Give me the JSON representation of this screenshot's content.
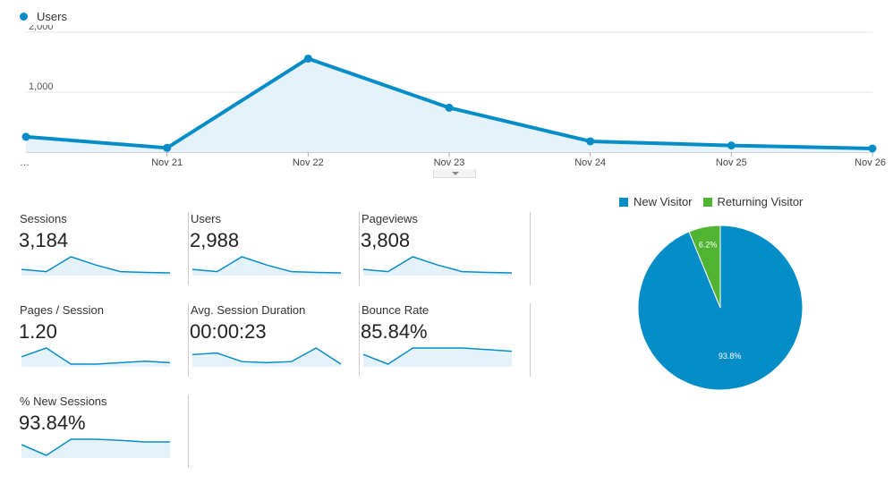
{
  "chart_data": [
    {
      "type": "area",
      "x": [
        "…",
        "Nov 21",
        "Nov 22",
        "Nov 23",
        "Nov 24",
        "Nov 25",
        "Nov 26"
      ],
      "series": [
        {
          "name": "Users",
          "values": [
            255,
            70,
            1560,
            740,
            180,
            110,
            60
          ]
        }
      ],
      "yticks": [
        "1,000",
        "2,000"
      ],
      "ylim": [
        0,
        2000
      ],
      "grid": true,
      "legend": "top-left",
      "color": "#058dc7"
    },
    {
      "type": "pie",
      "categories": [
        "New Visitor",
        "Returning Visitor"
      ],
      "values": [
        93.8,
        6.2
      ],
      "labels": [
        "93.8%",
        "6.2%"
      ],
      "colors": [
        "#058dc7",
        "#50b432"
      ],
      "legend": "top"
    }
  ],
  "metrics": [
    {
      "label": "Sessions",
      "value": "3,184",
      "spark": [
        45,
        30,
        130,
        75,
        30,
        25,
        22
      ]
    },
    {
      "label": "Users",
      "value": "2,988",
      "spark": [
        45,
        30,
        130,
        75,
        30,
        25,
        22
      ]
    },
    {
      "label": "Pageviews",
      "value": "3,808",
      "spark": [
        45,
        30,
        130,
        75,
        30,
        25,
        22
      ]
    },
    {
      "label": "Pages / Session",
      "value": "1.20",
      "spark": [
        1.3,
        1.42,
        1.2,
        1.2,
        1.22,
        1.24,
        1.22
      ]
    },
    {
      "label": "Avg. Session Duration",
      "value": "00:00:23",
      "spark": [
        22,
        25,
        8,
        6,
        8,
        35,
        3
      ]
    },
    {
      "label": "Bounce Rate",
      "value": "85.84%",
      "spark": [
        84,
        81,
        86,
        86,
        86,
        85.5,
        85
      ]
    },
    {
      "label": "% New Sessions",
      "value": "93.84%",
      "spark": [
        93,
        91,
        94,
        94,
        93.8,
        93.5,
        93.5
      ]
    }
  ]
}
